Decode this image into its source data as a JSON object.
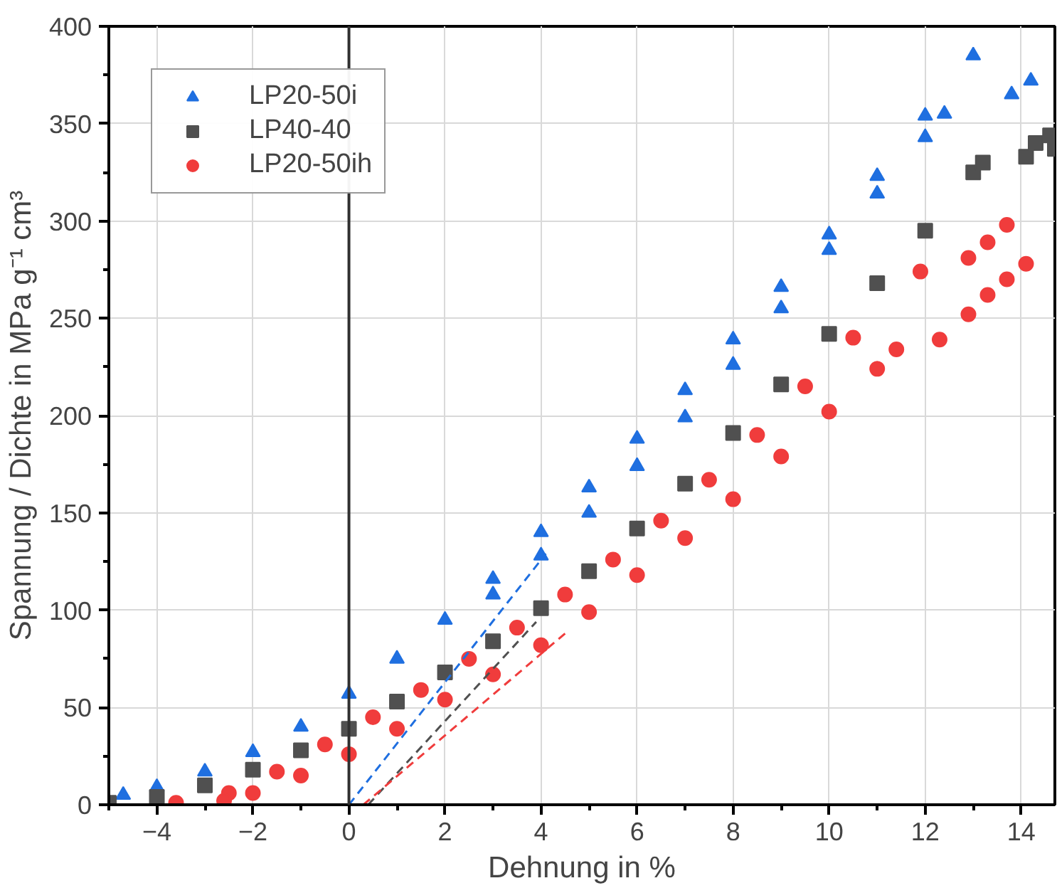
{
  "chart_data": {
    "type": "scatter",
    "xlabel": "Dehnung in %",
    "ylabel": "Spannung / Dichte in MPa g⁻¹ cm³",
    "xlim": [
      -5,
      14.7
    ],
    "ylim": [
      0,
      400
    ],
    "xticks": [
      -4,
      -2,
      0,
      2,
      4,
      6,
      8,
      10,
      12,
      14
    ],
    "yticks": [
      0,
      50,
      100,
      150,
      200,
      250,
      300,
      350,
      400
    ],
    "grid": true,
    "legend": "top left",
    "series": [
      {
        "name": "LP20-50i",
        "color": "#1f6fe0",
        "marker": "triangle",
        "x": [
          -4.7,
          -4,
          -3,
          -2,
          -1,
          0,
          1,
          2,
          3,
          4,
          5,
          6,
          7,
          8,
          9,
          10,
          11,
          12,
          13
        ],
        "values": [
          5,
          9,
          17,
          27,
          40,
          57,
          75,
          95,
          116,
          140,
          163,
          188,
          213,
          239,
          266,
          293,
          323,
          354,
          385
        ]
      },
      {
        "color": "#1f6fe0",
        "marker": "triangle",
        "x": [
          3,
          4,
          5,
          6,
          7,
          8,
          9,
          10,
          11,
          12,
          12.4,
          13.8,
          14.2
        ],
        "values": [
          108,
          128,
          150,
          174,
          199,
          226,
          255,
          285,
          314,
          343,
          355,
          365,
          372
        ]
      },
      {
        "name": "LP40-40",
        "color": "#505050",
        "marker": "square",
        "x": [
          -5,
          -4,
          -3,
          -2,
          -1,
          0,
          1,
          2,
          3,
          4,
          5,
          6,
          7,
          8,
          9,
          10,
          11,
          12,
          13,
          13.2,
          14.1,
          14.3,
          14.6,
          14.7
        ],
        "values": [
          1,
          4,
          10,
          18,
          28,
          39,
          53,
          68,
          84,
          101,
          120,
          142,
          165,
          191,
          216,
          242,
          268,
          295,
          325,
          330,
          333,
          340,
          344,
          337
        ]
      },
      {
        "name": "LP20-50ih",
        "color": "#f03c3c",
        "marker": "circle",
        "x": [
          -3.6,
          -2.5,
          -1.5,
          -0.5,
          0.5,
          1.5,
          2.5,
          3.5,
          4.5,
          5.5,
          6.5,
          7.5,
          8.5,
          9.5,
          10.5,
          11.9,
          12.9,
          13.3,
          13.7
        ],
        "values": [
          1,
          6,
          17,
          31,
          45,
          59,
          75,
          91,
          108,
          126,
          146,
          167,
          190,
          215,
          240,
          274,
          281,
          289,
          298
        ]
      },
      {
        "color": "#f03c3c",
        "marker": "circle",
        "x": [
          -2.6,
          -2,
          -1,
          0,
          1,
          2,
          3,
          4,
          5,
          6,
          7,
          8,
          9,
          10,
          11,
          11.4,
          12.3,
          12.9,
          13.3,
          13.7,
          14.1
        ],
        "values": [
          2,
          6,
          15,
          26,
          39,
          54,
          67,
          82,
          99,
          118,
          137,
          157,
          179,
          202,
          224,
          234,
          239,
          252,
          262,
          270,
          278
        ]
      },
      {
        "type": "line",
        "line_style": "dashed",
        "color": "#1f6fe0",
        "x": [
          0,
          4.1
        ],
        "values": [
          0,
          129
        ]
      },
      {
        "type": "line",
        "line_style": "dashed",
        "color": "#505050",
        "x": [
          0.4,
          3.9
        ],
        "values": [
          0,
          94
        ]
      },
      {
        "type": "line",
        "line_style": "dashed",
        "color": "#f03c3c",
        "x": [
          0.3,
          4.5
        ],
        "values": [
          0,
          88
        ]
      }
    ],
    "ref_lines": [
      {
        "axis": "x",
        "value": 0,
        "color": "#303030"
      }
    ]
  }
}
